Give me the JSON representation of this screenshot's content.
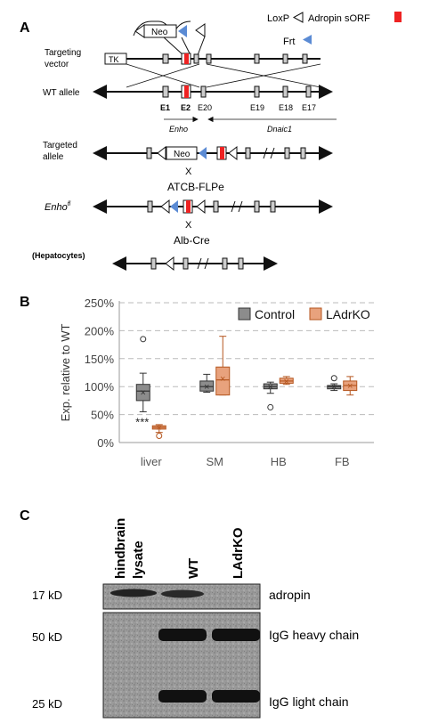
{
  "panelA": {
    "label": "A",
    "legend": {
      "loxp": "LoxP",
      "frt": "Frt",
      "sorf": "Adropin sORF"
    },
    "rows": {
      "vector": [
        "Targeting",
        "vector"
      ],
      "wt": "WT allele",
      "targeted": [
        "Targeted",
        "allele"
      ],
      "flox": "Enho",
      "flox_sup": "fl",
      "hep": "(Hepatocytes)"
    },
    "boxes": {
      "neo": "Neo",
      "tk": "TK"
    },
    "exons": {
      "e1": "E1",
      "e2": "E2",
      "e20": "E20",
      "e19": "E19",
      "e18": "E18",
      "e17": "E17"
    },
    "genes": {
      "enho": "Enho",
      "dnaic": "Dnaic1"
    },
    "cross": "X",
    "steps": {
      "flpe": "ATCB-FLPe",
      "cre": "Alb-Cre"
    }
  },
  "panelB": {
    "label": "B",
    "chart_data": {
      "type": "box",
      "ylabel": "Exp. relative to WT",
      "ylim": [
        0,
        250
      ],
      "yticks": [
        "0%",
        "50%",
        "100%",
        "150%",
        "200%",
        "250%"
      ],
      "yticks_values": [
        0,
        50,
        100,
        150,
        200,
        250
      ],
      "grid": true,
      "legend_position": "top-right",
      "categories": [
        "liver",
        "SM",
        "HB",
        "FB"
      ],
      "annotation": "***",
      "series": [
        {
          "name": "Control",
          "color": "#8c8c8c",
          "boxes": [
            {
              "min": 55,
              "q1": 75,
              "median": 92,
              "q3": 104,
              "max": 124,
              "mean": 90,
              "outliers": [
                185
              ]
            },
            {
              "min": 90,
              "q1": 92,
              "median": 100,
              "q3": 110,
              "max": 122,
              "mean": 100,
              "outliers": []
            },
            {
              "min": 88,
              "q1": 96,
              "median": 100,
              "q3": 105,
              "max": 108,
              "mean": 100,
              "outliers": [
                63
              ]
            },
            {
              "min": 93,
              "q1": 96,
              "median": 100,
              "q3": 102,
              "max": 105,
              "mean": 100,
              "outliers": [
                115
              ]
            }
          ]
        },
        {
          "name": "LAdrKO",
          "color": "#e8a27d",
          "boxes": [
            {
              "min": 18,
              "q1": 24,
              "median": 27,
              "q3": 30,
              "max": 32,
              "mean": 27,
              "outliers": [
                12
              ]
            },
            {
              "min": 85,
              "q1": 85,
              "median": 112,
              "q3": 135,
              "max": 190,
              "mean": 115,
              "outliers": []
            },
            {
              "min": 104,
              "q1": 106,
              "median": 110,
              "q3": 115,
              "max": 118,
              "mean": 110,
              "outliers": []
            },
            {
              "min": 85,
              "q1": 93,
              "median": 102,
              "q3": 110,
              "max": 118,
              "mean": 102,
              "outliers": []
            }
          ]
        }
      ]
    }
  },
  "panelC": {
    "label": "C",
    "lanes": {
      "l1a": "hindbrain",
      "l1b": "lysate",
      "l2": "WT",
      "l3": "LAdrKO"
    },
    "markers": {
      "m17": "17 kD",
      "m50": "50 kD",
      "m25": "25 kD"
    },
    "bands": {
      "adropin": "adropin",
      "heavy": "IgG heavy chain",
      "light": "IgG light chain"
    }
  }
}
